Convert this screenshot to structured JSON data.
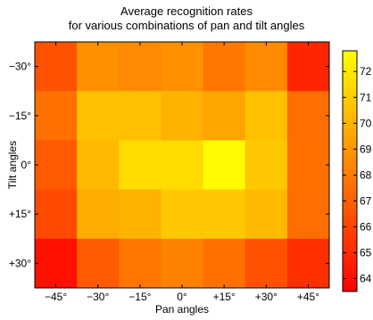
{
  "chart_data": {
    "type": "heatmap",
    "title_line1": "Average recognition rates",
    "title_line2": "for various combinations of pan and tilt angles",
    "xlabel": "Pan angles",
    "ylabel": "Tilt angles",
    "x": [
      "−45°",
      "−30°",
      "−15°",
      "0°",
      "+15°",
      "+30°",
      "+45°"
    ],
    "y": [
      "−30°",
      "−15°",
      "0°",
      "+15°",
      "+30°"
    ],
    "values": [
      [
        66.5,
        68.8,
        68.5,
        68.8,
        67.8,
        68.5,
        64.9
      ],
      [
        67.6,
        70.5,
        70.5,
        70.0,
        69.5,
        70.5,
        67.5
      ],
      [
        66.8,
        70.3,
        71.5,
        71.5,
        72.6,
        70.8,
        67.6
      ],
      [
        66.2,
        69.8,
        70.0,
        70.8,
        70.8,
        70.3,
        67.5
      ],
      [
        64.1,
        66.8,
        67.8,
        68.2,
        67.6,
        66.5,
        65.2
      ]
    ],
    "colorbar": {
      "ticks": [
        "64",
        "65",
        "66",
        "67",
        "68",
        "69",
        "70",
        "71",
        "72"
      ],
      "range": [
        63.5,
        72.8
      ]
    },
    "colormap": "autumn"
  }
}
